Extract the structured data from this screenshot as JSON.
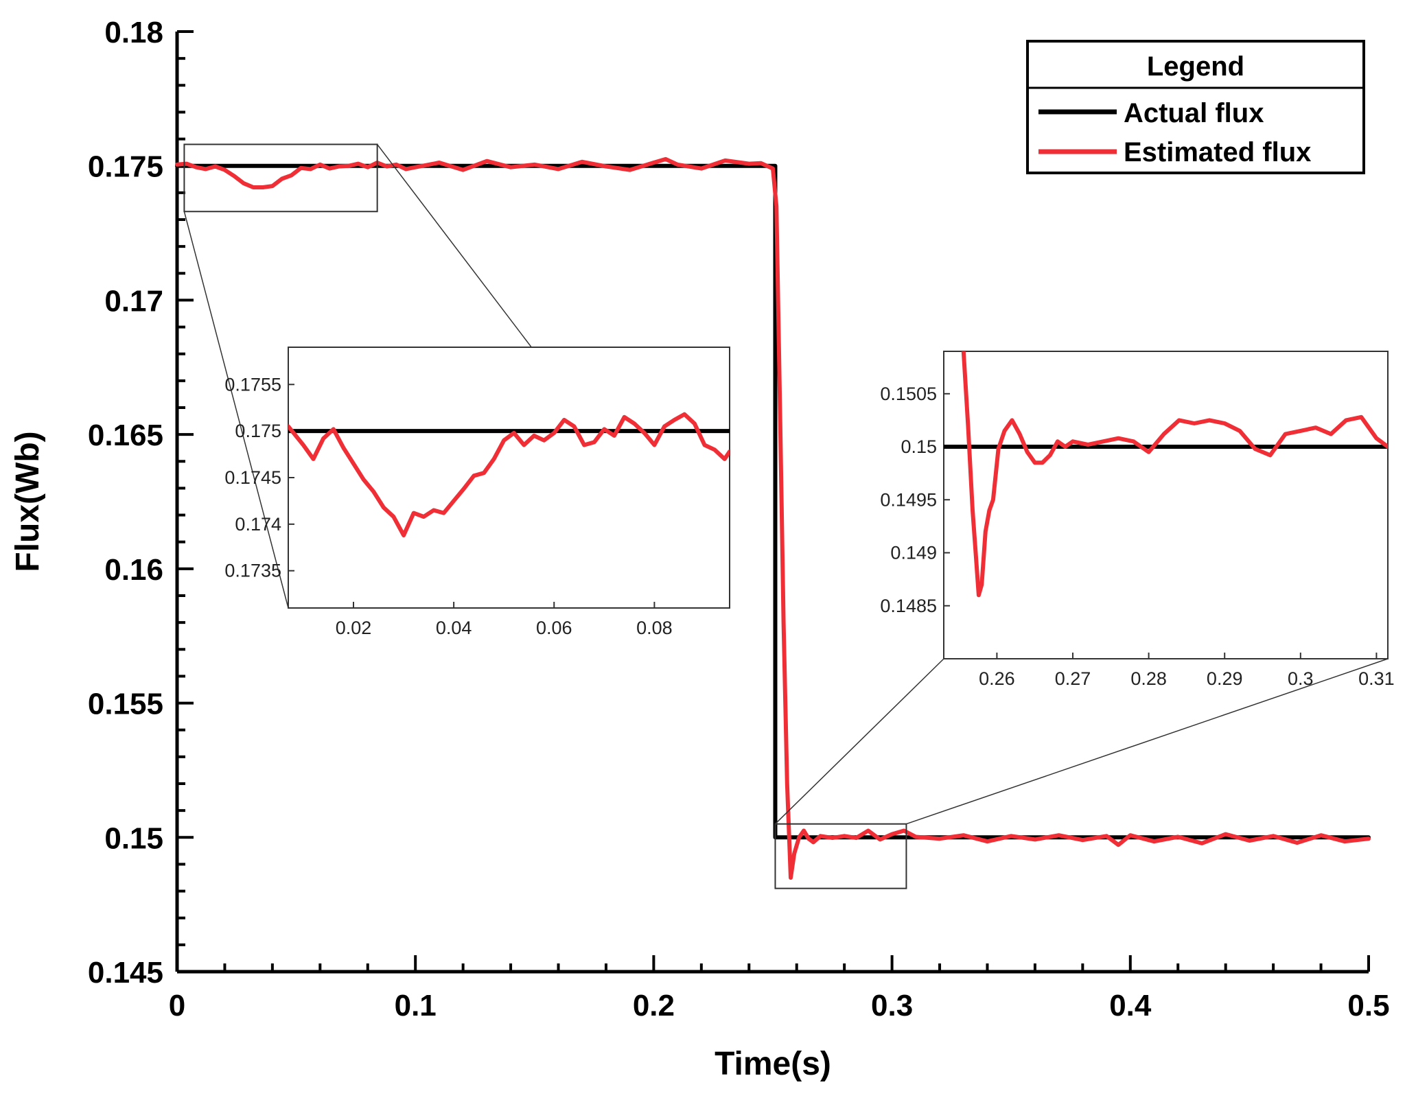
{
  "chart_data": {
    "type": "line",
    "xlabel": "Time(s)",
    "ylabel": "Flux(Wb)",
    "xlim": [
      0,
      0.5
    ],
    "ylim": [
      0.145,
      0.18
    ],
    "xticks": [
      0,
      0.1,
      0.2,
      0.3,
      0.4,
      0.5
    ],
    "xtick_labels": [
      "0",
      "0.1",
      "0.2",
      "0.3",
      "0.4",
      "0.5"
    ],
    "yticks": [
      0.145,
      0.15,
      0.155,
      0.16,
      0.165,
      0.17,
      0.175,
      0.18
    ],
    "ytick_labels": [
      "0.145",
      "0.15",
      "0.155",
      "0.16",
      "0.165",
      "0.17",
      "0.175",
      "0.18"
    ],
    "legend": {
      "title": "Legend",
      "position": "top-right",
      "entries": [
        "Actual flux",
        "Estimated flux"
      ]
    },
    "colors": {
      "actual": "#000000",
      "estimated": "#ef2e36",
      "axis": "#000000",
      "zoom_box": "#333333"
    },
    "series": [
      {
        "name": "Actual flux",
        "x": [
          0,
          0.251,
          0.251,
          0.5
        ],
        "y": [
          0.175,
          0.175,
          0.15,
          0.15
        ]
      },
      {
        "name": "Estimated flux",
        "x": [
          0,
          0.004,
          0.008,
          0.012,
          0.016,
          0.02,
          0.024,
          0.028,
          0.032,
          0.036,
          0.04,
          0.044,
          0.048,
          0.052,
          0.056,
          0.06,
          0.064,
          0.068,
          0.072,
          0.076,
          0.08,
          0.084,
          0.088,
          0.092,
          0.096,
          0.1,
          0.11,
          0.12,
          0.13,
          0.14,
          0.15,
          0.16,
          0.17,
          0.18,
          0.19,
          0.2,
          0.205,
          0.21,
          0.22,
          0.23,
          0.24,
          0.245,
          0.25,
          0.2515,
          0.253,
          0.2545,
          0.256,
          0.2575,
          0.259,
          0.261,
          0.263,
          0.265,
          0.267,
          0.27,
          0.275,
          0.28,
          0.285,
          0.29,
          0.295,
          0.3,
          0.305,
          0.31,
          0.32,
          0.33,
          0.34,
          0.35,
          0.36,
          0.37,
          0.38,
          0.39,
          0.395,
          0.4,
          0.41,
          0.42,
          0.43,
          0.44,
          0.45,
          0.46,
          0.47,
          0.48,
          0.49,
          0.5
        ],
        "y": [
          0.17505,
          0.17508,
          0.17495,
          0.17488,
          0.17498,
          0.17485,
          0.17462,
          0.17435,
          0.1742,
          0.1742,
          0.17425,
          0.17452,
          0.17465,
          0.17492,
          0.17488,
          0.17505,
          0.1749,
          0.17498,
          0.175,
          0.17508,
          0.17495,
          0.17512,
          0.17498,
          0.17505,
          0.17488,
          0.17495,
          0.17512,
          0.17485,
          0.17518,
          0.17495,
          0.17505,
          0.17488,
          0.17515,
          0.17498,
          0.17485,
          0.17512,
          0.17525,
          0.17505,
          0.1749,
          0.1752,
          0.17508,
          0.1751,
          0.1749,
          0.1735,
          0.166,
          0.158,
          0.152,
          0.1485,
          0.1494,
          0.15,
          0.15025,
          0.14995,
          0.14982,
          0.15005,
          0.14998,
          0.15005,
          0.14998,
          0.15025,
          0.14992,
          0.15012,
          0.15025,
          0.15002,
          0.14995,
          0.15008,
          0.14985,
          0.15005,
          0.14992,
          0.15008,
          0.1499,
          0.15005,
          0.14972,
          0.15008,
          0.14985,
          0.15002,
          0.14978,
          0.15012,
          0.14988,
          0.15005,
          0.1498,
          0.15008,
          0.14985,
          0.14995
        ]
      }
    ],
    "insets": [
      {
        "name": "zoom-start",
        "source_xlim": [
          0.003,
          0.084
        ],
        "source_ylim": [
          0.1733,
          0.1758
        ],
        "xlim": [
          0.007,
          0.095
        ],
        "ylim": [
          0.1731,
          0.1759
        ],
        "xticks": [
          0.02,
          0.04,
          0.06,
          0.08
        ],
        "xtick_labels": [
          "0.02",
          "0.04",
          "0.06",
          "0.08"
        ],
        "yticks": [
          0.1735,
          0.174,
          0.1745,
          0.175,
          0.1755
        ],
        "ytick_labels": [
          "0.1735",
          "0.174",
          "0.1745",
          "0.175",
          "0.1755"
        ],
        "actual": {
          "x": [
            0.007,
            0.095
          ],
          "y": [
            0.175,
            0.175
          ]
        },
        "estimated": {
          "x": [
            0.007,
            0.01,
            0.012,
            0.014,
            0.016,
            0.018,
            0.02,
            0.022,
            0.024,
            0.026,
            0.028,
            0.03,
            0.032,
            0.034,
            0.036,
            0.038,
            0.04,
            0.042,
            0.044,
            0.046,
            0.048,
            0.05,
            0.052,
            0.054,
            0.056,
            0.058,
            0.06,
            0.062,
            0.064,
            0.066,
            0.068,
            0.07,
            0.072,
            0.074,
            0.076,
            0.078,
            0.08,
            0.082,
            0.084,
            0.086,
            0.088,
            0.09,
            0.092,
            0.094,
            0.095
          ],
          "y": [
            0.17505,
            0.17485,
            0.1747,
            0.17492,
            0.17502,
            0.17482,
            0.17465,
            0.17448,
            0.17435,
            0.17418,
            0.17408,
            0.17388,
            0.17412,
            0.17408,
            0.17415,
            0.17412,
            0.17425,
            0.17438,
            0.17452,
            0.17455,
            0.1747,
            0.1749,
            0.17498,
            0.17485,
            0.17495,
            0.1749,
            0.17498,
            0.17512,
            0.17505,
            0.17485,
            0.17488,
            0.17502,
            0.17495,
            0.17515,
            0.17508,
            0.17498,
            0.17485,
            0.17505,
            0.17512,
            0.17518,
            0.17508,
            0.17485,
            0.1748,
            0.1747,
            0.17478
          ]
        }
      },
      {
        "name": "zoom-step",
        "source_xlim": [
          0.251,
          0.306
        ],
        "source_ylim": [
          0.1481,
          0.1505
        ],
        "xlim": [
          0.253,
          0.3115
        ],
        "ylim": [
          0.148,
          0.1509
        ],
        "xticks": [
          0.26,
          0.27,
          0.28,
          0.29,
          0.3,
          0.31
        ],
        "xtick_labels": [
          "0.26",
          "0.27",
          "0.28",
          "0.29",
          "0.3",
          "0.31"
        ],
        "yticks": [
          0.1485,
          0.149,
          0.1495,
          0.15,
          0.1505
        ],
        "ytick_labels": [
          "0.1485",
          "0.149",
          "0.1495",
          "0.15",
          "0.1505"
        ],
        "actual": {
          "x": [
            0.253,
            0.3115
          ],
          "y": [
            0.15,
            0.15
          ]
        },
        "estimated": {
          "x": [
            0.2556,
            0.2562,
            0.2568,
            0.2572,
            0.2576,
            0.258,
            0.2585,
            0.259,
            0.2595,
            0.2602,
            0.261,
            0.262,
            0.263,
            0.264,
            0.265,
            0.266,
            0.267,
            0.268,
            0.269,
            0.27,
            0.272,
            0.274,
            0.276,
            0.278,
            0.28,
            0.282,
            0.284,
            0.286,
            0.288,
            0.29,
            0.292,
            0.294,
            0.296,
            0.298,
            0.3,
            0.302,
            0.304,
            0.306,
            0.308,
            0.31,
            0.3115
          ],
          "y": [
            0.1509,
            0.1502,
            0.1494,
            0.149,
            0.1486,
            0.1487,
            0.1492,
            0.1494,
            0.1495,
            0.14998,
            0.15015,
            0.15025,
            0.15012,
            0.14995,
            0.14985,
            0.14985,
            0.14992,
            0.15005,
            0.15,
            0.15005,
            0.15002,
            0.15005,
            0.15008,
            0.15005,
            0.14995,
            0.15012,
            0.15025,
            0.15022,
            0.15025,
            0.15022,
            0.15015,
            0.14998,
            0.14992,
            0.15012,
            0.15015,
            0.15018,
            0.15012,
            0.15025,
            0.15028,
            0.15008,
            0.15
          ]
        }
      }
    ]
  }
}
